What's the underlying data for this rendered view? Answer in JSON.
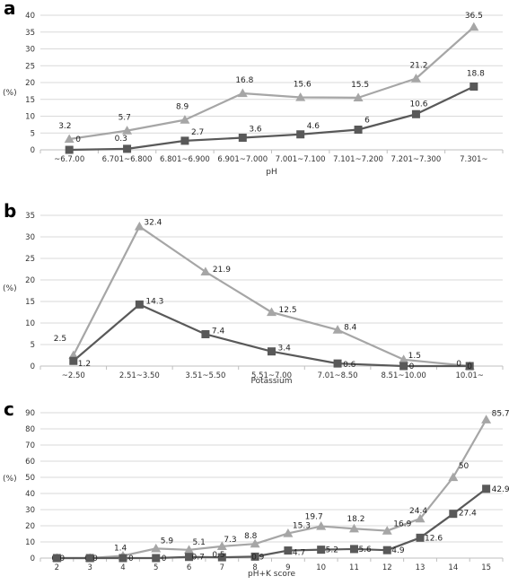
{
  "chart_data": [
    {
      "type": "line",
      "panel_label": "a",
      "categories": [
        "~6.7.00",
        "6.701~6.800",
        "6.801~6.900",
        "6.901~7.000",
        "7.001~7.100",
        "7.101~7.200",
        "7.201~7.300",
        "7.301~"
      ],
      "series": [
        {
          "values": [
            3.2,
            5.7,
            8.9,
            16.8,
            15.6,
            15.5,
            21.2,
            36.5
          ],
          "labels": [
            "3.2",
            "5.7",
            "8.9",
            "16.8",
            "15.6",
            "15.5",
            "21.2",
            "36.5"
          ],
          "marker": "triangle",
          "color": "#a6a6a6"
        },
        {
          "values": [
            0,
            0.3,
            2.7,
            3.6,
            4.6,
            6,
            10.6,
            18.8
          ],
          "labels": [
            "0",
            "0.3",
            "2.7",
            "3.6",
            "4.6",
            "6",
            "10.6",
            "18.8"
          ],
          "marker": "square",
          "color": "#595959"
        }
      ],
      "xlabel": "pH",
      "ylabel": "(%)",
      "ylim": [
        0,
        40
      ],
      "yticks": [
        "0",
        "5",
        "10",
        "15",
        "20",
        "25",
        "30",
        "35",
        "40"
      ],
      "grid": true
    },
    {
      "type": "line",
      "panel_label": "b",
      "categories": [
        "~2.50",
        "2.51~3.50",
        "3.51~5.50",
        "5.51~7.00",
        "7.01~8.50",
        "8.51~10.00",
        "10.01~"
      ],
      "series": [
        {
          "values": [
            2.5,
            32.4,
            21.9,
            12.5,
            8.4,
            1.5,
            0
          ],
          "labels": [
            "2.5",
            "32.4",
            "21.9",
            "12.5",
            "8.4",
            "1.5",
            "0"
          ],
          "marker": "triangle",
          "color": "#a6a6a6"
        },
        {
          "values": [
            1.2,
            14.3,
            7.4,
            3.4,
            0.6,
            0,
            0
          ],
          "labels": [
            "1.2",
            "14.3",
            "7.4",
            "3.4",
            "0.6",
            "0",
            "0"
          ],
          "marker": "square",
          "color": "#595959"
        }
      ],
      "xlabel": "Potassium",
      "ylabel": "(%)",
      "ylim": [
        0,
        35
      ],
      "yticks": [
        "0",
        "5",
        "10",
        "15",
        "20",
        "25",
        "30",
        "35"
      ],
      "grid": true
    },
    {
      "type": "line",
      "panel_label": "c",
      "categories": [
        "2",
        "3",
        "4",
        "5",
        "6",
        "7",
        "8",
        "9",
        "10",
        "11",
        "12",
        "13",
        "14",
        "15"
      ],
      "series": [
        {
          "values": [
            0,
            0,
            1.4,
            5.9,
            5.1,
            7.3,
            8.8,
            15.3,
            19.7,
            18.2,
            16.9,
            24.4,
            50,
            85.7
          ],
          "labels": [
            "0",
            "0",
            "1.4",
            "5.9",
            "5.1",
            "7.3",
            "8.8",
            "15.3",
            "19.7",
            "18.2",
            "16.9",
            "24.4",
            "50",
            "85.7"
          ],
          "marker": "triangle",
          "color": "#a6a6a6"
        },
        {
          "values": [
            0,
            0,
            0,
            0,
            0.7,
            0.5,
            0.9,
            4.7,
            5.2,
            5.6,
            4.9,
            12.6,
            27.4,
            42.9
          ],
          "labels": [
            "0",
            "0",
            "0",
            "0",
            "0.7",
            "0.5",
            "0.9",
            "4.7",
            "5.2",
            "5.6",
            "4.9",
            "12.6",
            "27.4",
            "42.9"
          ],
          "marker": "square",
          "color": "#595959"
        }
      ],
      "xlabel": "pH+K score",
      "ylabel": "(%)",
      "ylim": [
        0,
        90
      ],
      "yticks": [
        "0",
        "10",
        "20",
        "30",
        "40",
        "50",
        "60",
        "70",
        "80",
        "90"
      ],
      "grid": true
    }
  ]
}
